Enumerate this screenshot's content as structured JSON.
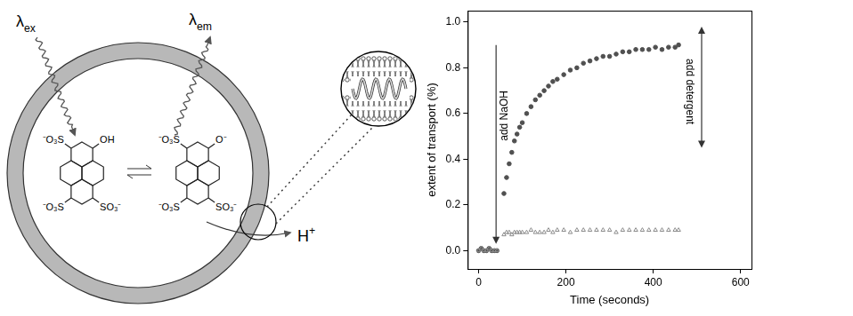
{
  "diagram": {
    "excitation": {
      "symbol": "λ",
      "sub": "ex"
    },
    "emission": {
      "symbol": "λ",
      "sub": "em"
    },
    "protonated": {
      "groups": [
        "⁻O₃S",
        "OH",
        "⁻O₃S",
        "SO₃⁻"
      ]
    },
    "deprotonated": {
      "groups": [
        "⁻O₃S",
        "O⁻",
        "⁻O₃S",
        "SO₃⁻"
      ]
    },
    "released_ion": {
      "symbol": "H",
      "sup": "+"
    }
  },
  "chart_data": {
    "type": "scatter",
    "x_label": "Time (seconds)",
    "y_label": "extent of transport (%)",
    "x": [
      0,
      6,
      12,
      18,
      24,
      30,
      36,
      42,
      58,
      64,
      70,
      76,
      82,
      88,
      94,
      100,
      110,
      120,
      130,
      140,
      150,
      160,
      170,
      180,
      195,
      210,
      225,
      240,
      255,
      270,
      285,
      300,
      315,
      330,
      345,
      360,
      375,
      390,
      405,
      420,
      435,
      450,
      458
    ],
    "series": [
      {
        "color": "#505050",
        "marker": "circle",
        "values": [
          0.0,
          0.01,
          0.0,
          0.0,
          0.01,
          0.0,
          0.0,
          0.0,
          0.25,
          0.32,
          0.38,
          0.43,
          0.48,
          0.51,
          0.54,
          0.56,
          0.6,
          0.63,
          0.66,
          0.68,
          0.7,
          0.72,
          0.74,
          0.75,
          0.77,
          0.79,
          0.8,
          0.82,
          0.83,
          0.84,
          0.85,
          0.85,
          0.86,
          0.87,
          0.87,
          0.88,
          0.88,
          0.88,
          0.89,
          0.88,
          0.89,
          0.89,
          0.9
        ]
      },
      {
        "color": "#8c8c8c",
        "marker": "triangle",
        "values": [
          0.0,
          0.01,
          0.0,
          0.0,
          0.01,
          0.0,
          0.0,
          0.0,
          0.07,
          0.08,
          0.08,
          0.07,
          0.08,
          0.08,
          0.08,
          0.08,
          0.08,
          0.09,
          0.08,
          0.08,
          0.08,
          0.09,
          0.08,
          0.09,
          0.09,
          0.08,
          0.09,
          0.09,
          0.09,
          0.09,
          0.09,
          0.09,
          0.08,
          0.09,
          0.09,
          0.09,
          0.09,
          0.09,
          0.09,
          0.09,
          0.09,
          0.09,
          0.09
        ]
      }
    ],
    "xlim": [
      -25,
      625
    ],
    "xticks": [
      0,
      200,
      400,
      600
    ],
    "ylim": [
      -0.08,
      1.05
    ],
    "yticks": [
      {
        "value": 0,
        "label": "0.0"
      },
      0.2,
      0.4,
      0.6,
      0.8,
      {
        "value": 1,
        "label": "1.0"
      }
    ],
    "grid": false,
    "annotations": [
      {
        "text": "add NaOH",
        "x": 40
      },
      {
        "text": "add detergent",
        "x": 470
      }
    ]
  }
}
